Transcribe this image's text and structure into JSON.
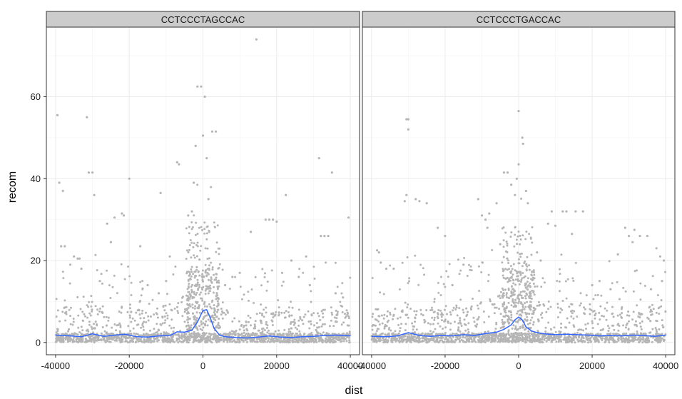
{
  "chart_data": {
    "type": "scatter",
    "xlabel": "dist",
    "ylabel": "recom",
    "xlim": [
      -42500,
      42500
    ],
    "ylim": [
      -3,
      77
    ],
    "x_ticks": [
      -40000,
      -20000,
      0,
      20000,
      40000
    ],
    "x_tick_labels": [
      "-40000",
      "-20000",
      "0",
      "20000",
      "40000"
    ],
    "y_ticks": [
      0,
      20,
      40,
      60
    ],
    "y_tick_labels": [
      "0",
      "20",
      "40",
      "60"
    ],
    "grid": true,
    "facets": [
      {
        "title": "CCTCCCTAGCCAC",
        "smooth_x": [
          -40000,
          -36000,
          -33000,
          -30000,
          -27000,
          -24000,
          -21000,
          -18000,
          -15000,
          -12000,
          -9000,
          -7000,
          -5000,
          -3000,
          -1500,
          0,
          1000,
          2000,
          3000,
          4500,
          6000,
          9000,
          12000,
          15000,
          18000,
          21000,
          24000,
          27000,
          30000,
          33000,
          36000,
          40000
        ],
        "smooth_y": [
          1.8,
          1.6,
          1.4,
          2.1,
          1.5,
          1.8,
          2.0,
          1.4,
          1.3,
          1.6,
          1.7,
          2.6,
          2.5,
          3.0,
          5.0,
          7.8,
          8.0,
          6.0,
          3.5,
          1.8,
          1.4,
          1.2,
          1.1,
          1.3,
          1.6,
          1.3,
          1.2,
          1.4,
          1.5,
          1.7,
          1.8,
          1.6
        ],
        "outliers": [
          [
            -39500,
            55.5
          ],
          [
            -39000,
            39
          ],
          [
            -38000,
            37
          ],
          [
            -31500,
            55
          ],
          [
            -31000,
            41.5
          ],
          [
            -30000,
            41.5
          ],
          [
            -29500,
            36
          ],
          [
            -26000,
            29
          ],
          [
            -25000,
            24.5
          ],
          [
            -24000,
            30.5
          ],
          [
            -22000,
            31.5
          ],
          [
            -21500,
            31
          ],
          [
            -20000,
            40
          ],
          [
            -17000,
            23.5
          ],
          [
            -11500,
            36.5
          ],
          [
            -9000,
            21
          ],
          [
            -7000,
            44
          ],
          [
            -6500,
            43.5
          ],
          [
            -4000,
            31
          ],
          [
            -3000,
            32
          ],
          [
            -2500,
            39
          ],
          [
            -2000,
            48
          ],
          [
            -1500,
            62.5
          ],
          [
            -500,
            62.5
          ],
          [
            0,
            50.5
          ],
          [
            500,
            60
          ],
          [
            1000,
            45
          ],
          [
            1500,
            35
          ],
          [
            2500,
            51.5
          ],
          [
            3500,
            51.5
          ],
          [
            13000,
            27
          ],
          [
            14500,
            74
          ],
          [
            17000,
            30
          ],
          [
            18000,
            30
          ],
          [
            19000,
            30
          ],
          [
            20000,
            29.5
          ],
          [
            21500,
            17
          ],
          [
            22500,
            36
          ],
          [
            24000,
            20
          ],
          [
            28000,
            21
          ],
          [
            31500,
            45
          ],
          [
            32000,
            26
          ],
          [
            33000,
            26
          ],
          [
            34000,
            26
          ],
          [
            35000,
            41.5
          ],
          [
            39500,
            30.5
          ],
          [
            -38500,
            23.5
          ],
          [
            -37500,
            23.5
          ],
          [
            -35000,
            21
          ],
          [
            -34000,
            20.5
          ],
          [
            -33500,
            20.5
          ],
          [
            -36000,
            19
          ],
          [
            -33000,
            18
          ],
          [
            -28000,
            15
          ],
          [
            -15000,
            14
          ],
          [
            -12000,
            12
          ],
          [
            -10000,
            15
          ],
          [
            6000,
            14
          ],
          [
            8000,
            16
          ],
          [
            10000,
            17
          ],
          [
            26000,
            16
          ],
          [
            29000,
            14
          ],
          [
            36000,
            12
          ],
          [
            38000,
            11
          ]
        ]
      },
      {
        "title": "CCTCCCTGACCAC",
        "smooth_x": [
          -40000,
          -36000,
          -33000,
          -30000,
          -27000,
          -24000,
          -21000,
          -18000,
          -15000,
          -12000,
          -9000,
          -6000,
          -4000,
          -2000,
          -1000,
          0,
          1000,
          2000,
          3500,
          5000,
          7000,
          10000,
          13000,
          16000,
          19000,
          22000,
          25000,
          28000,
          31000,
          34000,
          37000,
          40000
        ],
        "smooth_y": [
          1.5,
          1.4,
          1.6,
          2.4,
          1.7,
          1.5,
          1.7,
          1.6,
          1.9,
          1.7,
          2.2,
          2.5,
          3.2,
          4.3,
          5.5,
          6.2,
          5.5,
          3.8,
          2.8,
          2.4,
          2.1,
          1.9,
          2.0,
          1.9,
          1.8,
          1.6,
          1.7,
          1.6,
          1.8,
          1.7,
          1.5,
          1.8
        ],
        "outliers": [
          [
            -30500,
            54.5
          ],
          [
            -30000,
            54.5
          ],
          [
            -30000,
            52
          ],
          [
            -30500,
            36
          ],
          [
            -31000,
            34.5
          ],
          [
            -28000,
            35
          ],
          [
            -27000,
            34.5
          ],
          [
            -25000,
            34
          ],
          [
            -22000,
            28
          ],
          [
            -20000,
            26
          ],
          [
            -11000,
            35
          ],
          [
            -10000,
            31
          ],
          [
            -9000,
            30
          ],
          [
            -8500,
            28
          ],
          [
            -8000,
            31.5
          ],
          [
            -6000,
            34
          ],
          [
            -4000,
            41.5
          ],
          [
            -3000,
            41.5
          ],
          [
            -2000,
            38.5
          ],
          [
            -1000,
            36
          ],
          [
            -500,
            40
          ],
          [
            0,
            43.5
          ],
          [
            0,
            56.5
          ],
          [
            1000,
            50
          ],
          [
            1200,
            48.5
          ],
          [
            2000,
            37
          ],
          [
            2500,
            34
          ],
          [
            8000,
            29
          ],
          [
            9000,
            32
          ],
          [
            10000,
            28.5
          ],
          [
            12000,
            32
          ],
          [
            13000,
            32
          ],
          [
            14500,
            26.5
          ],
          [
            15500,
            32
          ],
          [
            17500,
            32
          ],
          [
            27000,
            21.5
          ],
          [
            29000,
            28
          ],
          [
            30000,
            26
          ],
          [
            31000,
            24.5
          ],
          [
            31500,
            27.5
          ],
          [
            33000,
            26
          ],
          [
            35000,
            26
          ],
          [
            37500,
            23
          ],
          [
            38500,
            21
          ],
          [
            39500,
            20
          ],
          [
            -38500,
            22.5
          ],
          [
            -38000,
            22
          ],
          [
            -37500,
            19.5
          ],
          [
            -36000,
            18
          ],
          [
            -34000,
            18
          ],
          [
            -15000,
            19
          ],
          [
            -18000,
            14
          ],
          [
            -5000,
            24
          ],
          [
            5000,
            22
          ],
          [
            6000,
            20
          ],
          [
            20000,
            14
          ],
          [
            22000,
            15
          ],
          [
            25000,
            13
          ],
          [
            36000,
            13
          ],
          [
            39000,
            15
          ]
        ]
      }
    ]
  },
  "style": {
    "point_color": "#b5b5b5",
    "smooth_color": "#3366ff",
    "strip_fill": "#cccccc",
    "grid_color": "#ebebeb",
    "border_color": "#333333"
  }
}
